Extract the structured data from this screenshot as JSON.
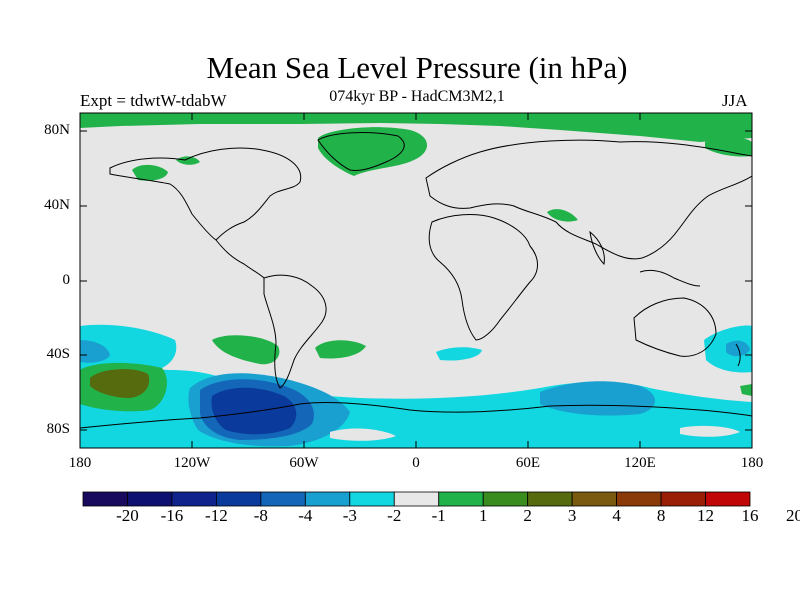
{
  "figure": {
    "title": "Mean Sea Level Pressure (in hPa)",
    "subtitle": "074kyr BP - HadCM3M2,1",
    "left_label": "Expt = tdwtW-tdabW",
    "right_label": "JJA"
  },
  "axes": {
    "x_ticks": [
      "180",
      "120W",
      "60W",
      "0",
      "60E",
      "120E",
      "180"
    ],
    "y_ticks": [
      "80N",
      "40N",
      "0",
      "40S",
      "80S"
    ]
  },
  "colorbar": {
    "colors": [
      "#1a0a5e",
      "#0d1070",
      "#10238c",
      "#0a3a9c",
      "#1366b8",
      "#1aa0d0",
      "#12d6e0",
      "#e8e8e8",
      "#22b24a",
      "#3a8c1e",
      "#556b0e",
      "#7a5a0e",
      "#8a3a08",
      "#9a1e06",
      "#c00606"
    ],
    "labels": [
      "-20",
      "-16",
      "-12",
      "-8",
      "-4",
      "-3",
      "-2",
      "-1",
      "1",
      "2",
      "3",
      "4",
      "8",
      "12",
      "16",
      "20"
    ]
  },
  "colors": {
    "background_field": "#e6e6e6",
    "coastline": "#000000"
  }
}
